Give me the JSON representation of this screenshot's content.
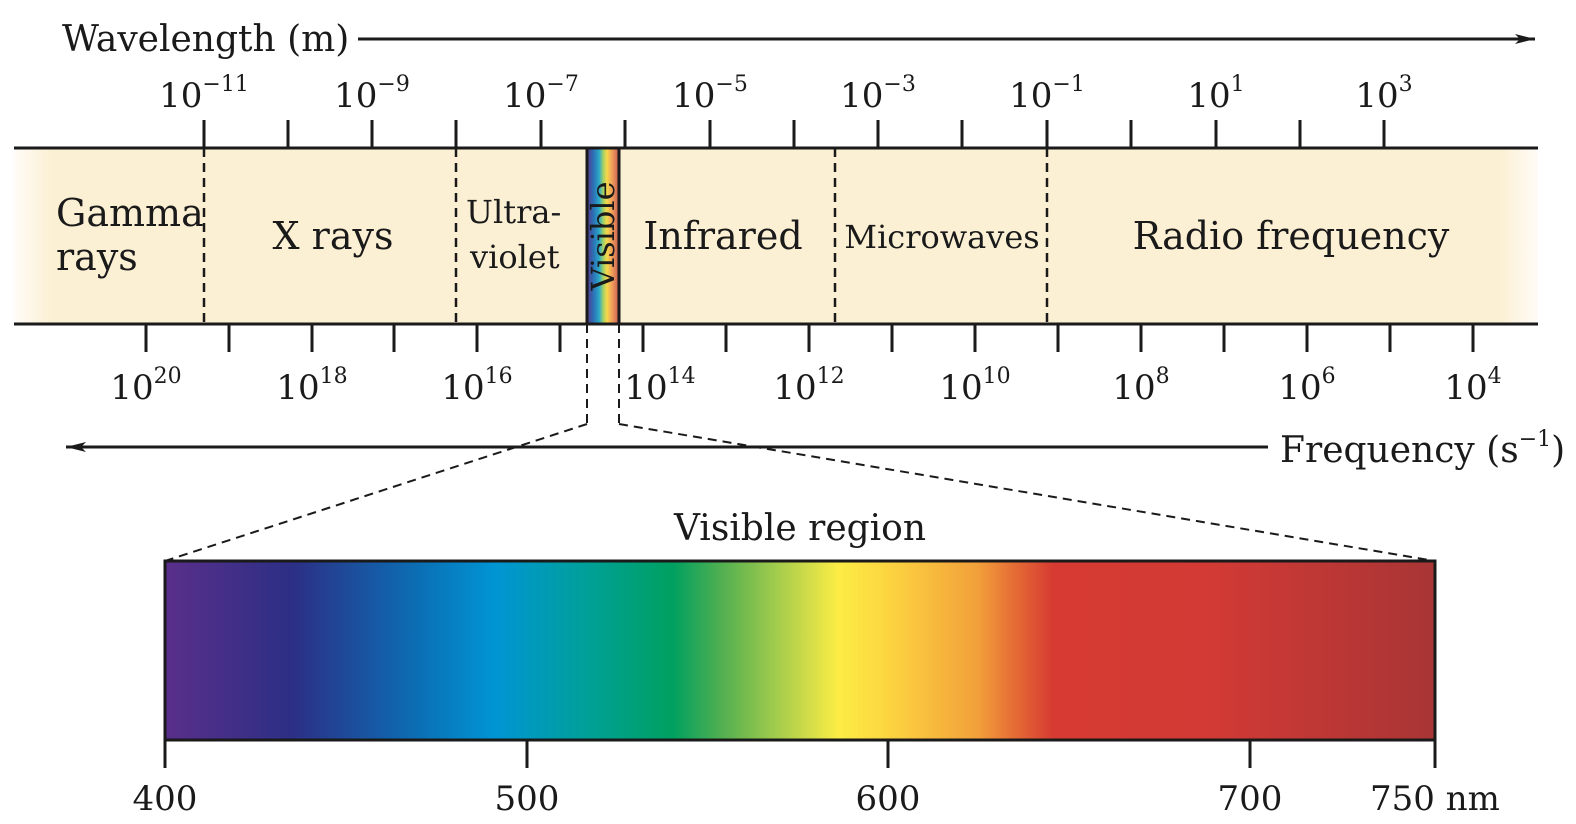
{
  "wavelength_axis": {
    "title": "Wavelength (m)",
    "ticks": [
      {
        "base": "10",
        "exp": "−11"
      },
      {
        "base": "10",
        "exp": "−9"
      },
      {
        "base": "10",
        "exp": "−7"
      },
      {
        "base": "10",
        "exp": "−5"
      },
      {
        "base": "10",
        "exp": "−3"
      },
      {
        "base": "10",
        "exp": "−1"
      },
      {
        "base": "10",
        "exp": "1"
      },
      {
        "base": "10",
        "exp": "3"
      }
    ]
  },
  "frequency_axis": {
    "title_main": "Frequency (s",
    "title_exp": "−1",
    "title_end": ")",
    "ticks": [
      {
        "base": "10",
        "exp": "20"
      },
      {
        "base": "10",
        "exp": "18"
      },
      {
        "base": "10",
        "exp": "16"
      },
      {
        "base": "10",
        "exp": "14"
      },
      {
        "base": "10",
        "exp": "12"
      },
      {
        "base": "10",
        "exp": "10"
      },
      {
        "base": "10",
        "exp": "8"
      },
      {
        "base": "10",
        "exp": "6"
      },
      {
        "base": "10",
        "exp": "4"
      }
    ]
  },
  "regions": {
    "gamma_line1": "Gamma",
    "gamma_line2": "rays",
    "xrays": "X rays",
    "uv_line1": "Ultra-",
    "uv_line2": "violet",
    "visible": "Visible",
    "infrared": "Infrared",
    "microwaves": "Microwaves",
    "radio": "Radio frequency"
  },
  "visible_region": {
    "title": "Visible region",
    "ticks": [
      "400",
      "500",
      "600",
      "700",
      "750 nm"
    ]
  },
  "colors": {
    "band_fill": "#fcf0d4",
    "line": "#1a1a1a"
  }
}
